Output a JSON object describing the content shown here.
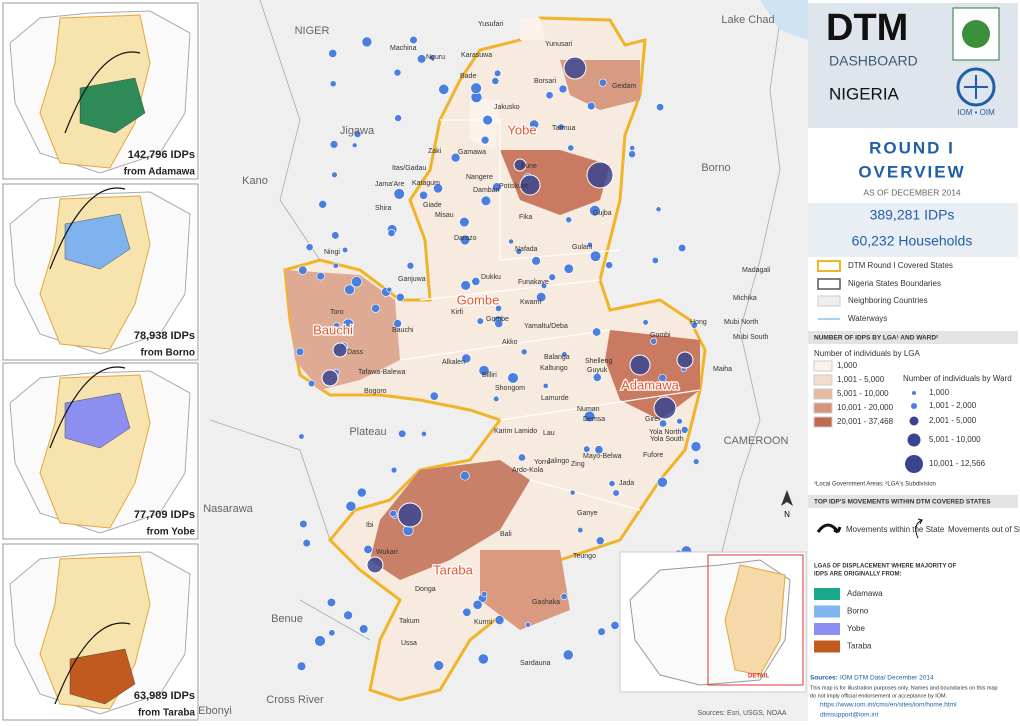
{
  "header": {
    "title": "DTM",
    "subtitle": "DASHBOARD",
    "country": "NIGERIA",
    "org": "IOM • OIM"
  },
  "overview": {
    "round": "ROUND I",
    "title": "OVERVIEW",
    "date": "AS OF DECEMBER 2014",
    "idps": "389,281 IDPs",
    "households": "60,232 Households"
  },
  "legend": {
    "items": [
      "DTM Round I Covered States",
      "Nigeria States Boundaries",
      "Neighboring Countries",
      "Waterways"
    ]
  },
  "idp_legend": {
    "title": "NUMBER OF IDPS BY LGA¹ AND WARD²",
    "lga_title": "Number of individuals by LGA",
    "lga_classes": [
      "1,000",
      "1,001 - 5,000",
      "5,001 - 10,000",
      "10,001 - 20,000",
      "20,001 - 37,468"
    ],
    "ward_title": "Number of individuals by Ward",
    "ward_classes": [
      "1,000",
      "1,001 - 2,000",
      "2,001 - 5,000",
      "5,001 - 10,000",
      "10,001 - 12,566"
    ],
    "note": "¹Local Government Areas; ²LGA's Subdivision"
  },
  "movements": {
    "title": "TOP IDP'S MOVEMENTS WITHIN DTM COVERED STATES",
    "within": "Movements within the State",
    "out": "Movements out of State"
  },
  "origin": {
    "title": "LGAS OF DISPLACEMENT WHERE MAJORITY OF",
    "title2": "IDPS ARE ORIGINALLY FROM:",
    "items": [
      "Adamawa",
      "Borno",
      "Yobe",
      "Taraba"
    ]
  },
  "sources": {
    "label": "Sources:",
    "text": "IOM DTM Data/ December 2014",
    "disclaimer": "This map is for illustration purposes only. Names and boundaries on this map",
    "disclaimer2": "do not imply official endorsement or acceptance by IOM.",
    "url": "https://www.iom.int/cms/en/sites/iom/home.html",
    "email": "dtmsupport@iom.int"
  },
  "insets": [
    {
      "count": "142,796 IDPs",
      "from": "from Adamawa"
    },
    {
      "count": "78,938 IDPs",
      "from": "from Borno"
    },
    {
      "count": "77,709 IDPs",
      "from": "from Yobe"
    },
    {
      "count": "63,989 IDPs",
      "from": "from Taraba"
    }
  ],
  "map": {
    "states": [
      "Yobe",
      "Gombe",
      "Bauchi",
      "Adamawa",
      "Taraba"
    ],
    "neighbors": [
      "NIGER",
      "Lake Chad",
      "Jigawa",
      "Kano",
      "Borno",
      "Plateau",
      "CAMEROON",
      "Nasarawa",
      "Benue",
      "Cross River",
      "Ebonyi"
    ],
    "lgas": [
      "Yusufari",
      "Machina",
      "Nguru",
      "Karasuwa",
      "Yunusari",
      "Bade",
      "Borsari",
      "Geidam",
      "Jakusko",
      "Tarmua",
      "Zaki",
      "Gamawa",
      "Itas/Gadau",
      "Fune",
      "Nangere",
      "Potiskum",
      "Damban",
      "Jama'Are",
      "Katagum",
      "Shira",
      "Giade",
      "Misau",
      "Fika",
      "Gujba",
      "Darazo",
      "Nafada",
      "Gulani",
      "Ningi",
      "Ganjuwa",
      "Dukku",
      "Funakaye",
      "Madagali",
      "Michika",
      "Toro",
      "Kirfi",
      "Kwami",
      "Gombe",
      "Hong",
      "Mubi North",
      "Mubi South",
      "Bauchi",
      "Yamaltu/Deba",
      "Akko",
      "Gombi",
      "Dass",
      "Alkaleri",
      "Balanga",
      "Shelleng",
      "Tafawa-Balewa",
      "Billiri",
      "Kaltungo",
      "Guyuk",
      "Maiha",
      "Bogoro",
      "Shongom",
      "Lamurde",
      "Numan",
      "Demsa",
      "Girei",
      "Yola North",
      "Yola South",
      "Karim Lamido",
      "Lau",
      "Mayo-Belwa",
      "Fufore",
      "Jalingo",
      "Yorro",
      "Zing",
      "Ardo-Kola",
      "Jada",
      "Ganye",
      "Ibi",
      "Bali",
      "Wukari",
      "Teungo",
      "Donga",
      "Gashaka",
      "Takum",
      "Kurmi",
      "Ussa",
      "Sardauna"
    ],
    "credit": "Sources: Esri, USGS, NOAA",
    "north": "N",
    "detail": "DETAIL"
  }
}
